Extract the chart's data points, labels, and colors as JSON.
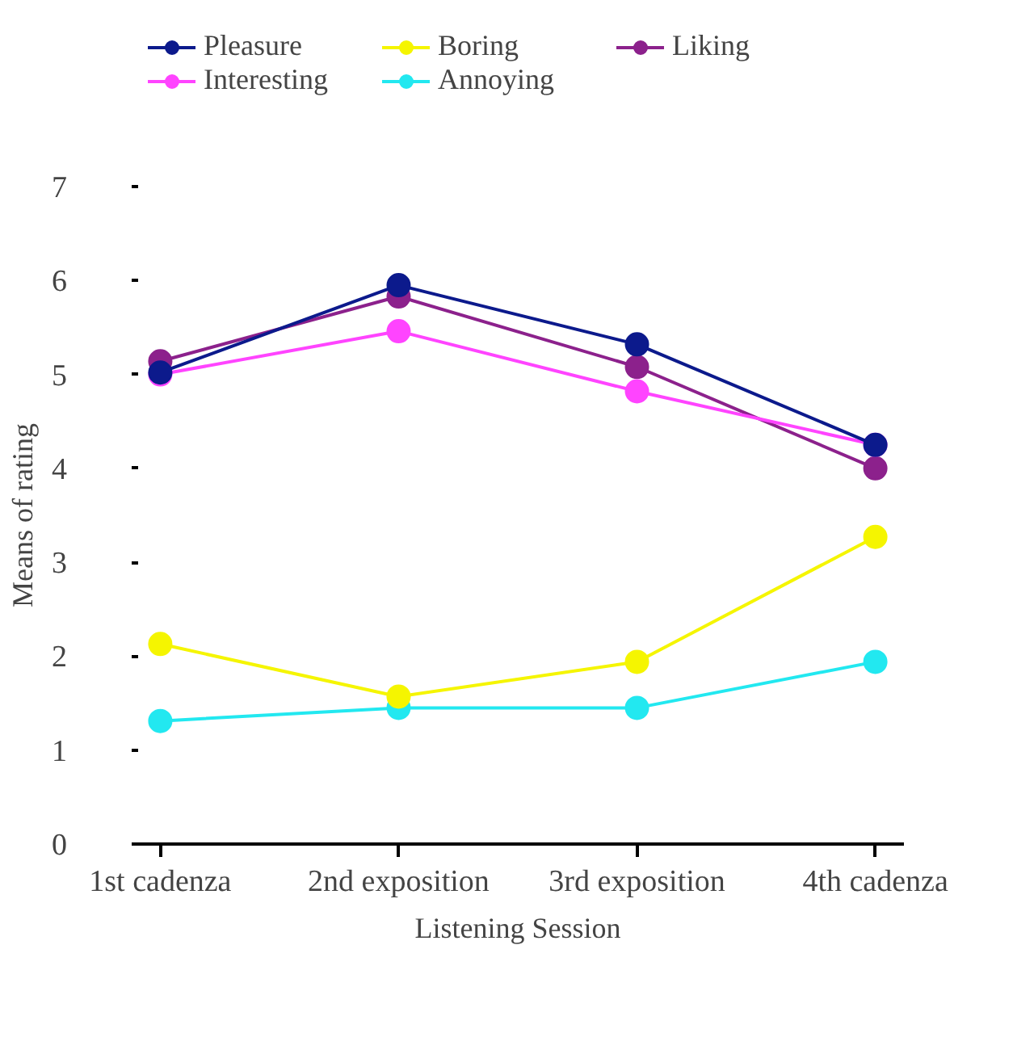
{
  "chart_data": {
    "type": "line",
    "xlabel": "Listening Session",
    "ylabel": "Means of rating",
    "categories": [
      "1st cadenza",
      "2nd exposition",
      "3rd exposition",
      "4th cadenza"
    ],
    "ylim": [
      0,
      7
    ],
    "yticks": [
      0,
      1,
      2,
      3,
      4,
      5,
      6,
      7
    ],
    "grid": false,
    "legend": "top",
    "marker": "circle",
    "line_style": "solid",
    "series": [
      {
        "name": "Pleasure",
        "color": "#0c1a8c",
        "values": [
          5.02,
          5.95,
          5.32,
          4.25
        ]
      },
      {
        "name": "Interesting",
        "color": "#ff44ff",
        "values": [
          5.0,
          5.46,
          4.82,
          4.25
        ]
      },
      {
        "name": "Boring",
        "color": "#f5f500",
        "values": [
          2.13,
          1.57,
          1.94,
          3.27
        ]
      },
      {
        "name": "Annoying",
        "color": "#22e8f0",
        "values": [
          1.31,
          1.45,
          1.45,
          1.94
        ]
      },
      {
        "name": "Liking",
        "color": "#8c218c",
        "values": [
          5.14,
          5.83,
          5.08,
          4.0
        ]
      }
    ]
  }
}
